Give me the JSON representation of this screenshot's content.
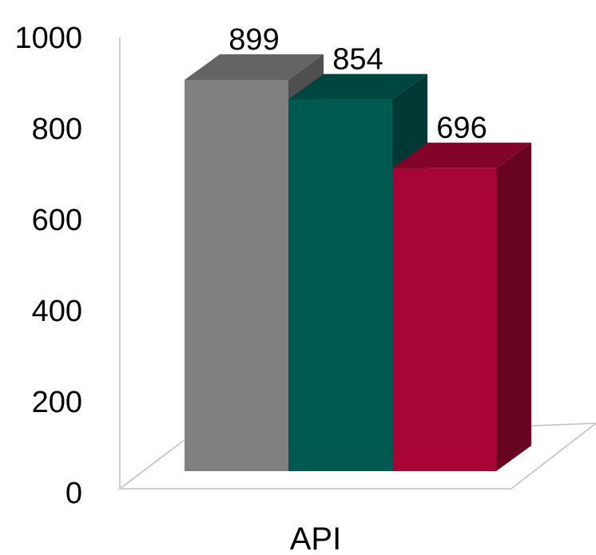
{
  "chart_data": {
    "type": "bar",
    "style": "3d-clustered-column",
    "categories": [
      "API"
    ],
    "series": [
      {
        "values": [
          899
        ],
        "color": "#808080"
      },
      {
        "values": [
          854
        ],
        "color": "#005a52"
      },
      {
        "values": [
          696
        ],
        "color": "#a70535"
      }
    ],
    "data_labels": [
      "899",
      "854",
      "696"
    ],
    "y_ticks": [
      "0",
      "200",
      "400",
      "600",
      "800",
      "1000"
    ],
    "ylim": [
      0,
      1000
    ],
    "grid": false,
    "legend": "none"
  }
}
